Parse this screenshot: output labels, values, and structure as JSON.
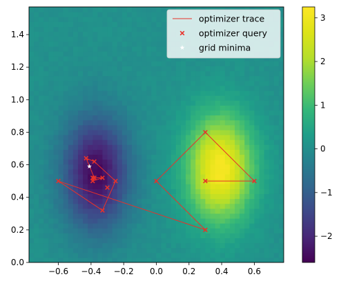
{
  "chart_data": {
    "type": "heatmap",
    "title": "",
    "xlabel": "",
    "ylabel": "",
    "xlim": [
      -0.78,
      0.78
    ],
    "ylim": [
      0.0,
      1.57
    ],
    "x_ticks": [
      -0.6,
      -0.4,
      -0.2,
      0.0,
      0.2,
      0.4,
      0.6
    ],
    "x_tick_labels": [
      "−0.6",
      "−0.4",
      "−0.2",
      "0.0",
      "0.2",
      "0.4",
      "0.6"
    ],
    "y_ticks": [
      0.0,
      0.2,
      0.4,
      0.6,
      0.8,
      1.0,
      1.2,
      1.4
    ],
    "y_tick_labels": [
      "0.0",
      "0.2",
      "0.4",
      "0.6",
      "0.8",
      "1.0",
      "1.2",
      "1.4"
    ],
    "colorbar": {
      "colormap": "viridis",
      "range": [
        -2.6,
        3.25
      ],
      "ticks": [
        -2,
        -1,
        0,
        1,
        2,
        3
      ],
      "tick_labels": [
        "−2",
        "−1",
        "0",
        "1",
        "2",
        "3"
      ]
    },
    "grid": false,
    "legend_position": "top-right",
    "series": [
      {
        "name": "optimizer trace",
        "kind": "line",
        "color": "#e8312a",
        "x": [
          0.3,
          0.6,
          0.3,
          0.0,
          0.3,
          -0.6,
          -0.33,
          -0.25,
          -0.38,
          -0.43,
          -0.38,
          -0.33,
          -0.39,
          -0.39
        ],
        "y": [
          0.5,
          0.5,
          0.8,
          0.5,
          0.2,
          0.5,
          0.32,
          0.5,
          0.62,
          0.64,
          0.52,
          0.52,
          0.5,
          0.52
        ]
      },
      {
        "name": "optimizer query",
        "kind": "scatter",
        "marker": "x",
        "color": "#e8312a",
        "x": [
          0.3,
          0.6,
          0.3,
          0.0,
          0.3,
          -0.6,
          -0.33,
          -0.25,
          -0.38,
          -0.43,
          -0.38,
          -0.33,
          -0.39,
          -0.39,
          -0.3
        ],
        "y": [
          0.5,
          0.5,
          0.8,
          0.5,
          0.2,
          0.5,
          0.32,
          0.5,
          0.62,
          0.64,
          0.52,
          0.52,
          0.5,
          0.52,
          0.46
        ]
      },
      {
        "name": "grid minima",
        "kind": "scatter",
        "marker": "star",
        "color": "#ffffff",
        "x": [
          -0.41
        ],
        "y": [
          0.59
        ]
      }
    ]
  }
}
